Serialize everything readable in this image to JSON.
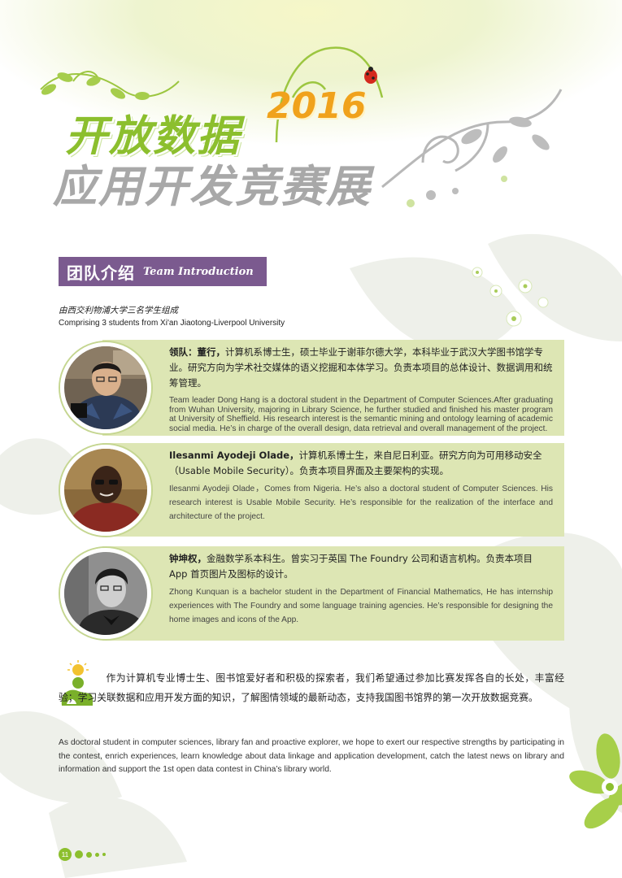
{
  "title": {
    "line1": "开放数据",
    "year": "2016",
    "line2": "应用开发竞赛展"
  },
  "section": {
    "title_cn": "团队介绍",
    "title_en": "Team Introduction"
  },
  "intro": {
    "cn": "由西交利物浦大学三名学生组成",
    "en": "Comprising 3 students from Xi'an Jiaotong-Liverpool University"
  },
  "members": [
    {
      "name": "领队：董行，",
      "cn": "计算机系博士生，硕士毕业于谢菲尔德大学，本科毕业于武汉大学图书馆学专业。研究方向为学术社交媒体的语义挖掘和本体学习。负责本项目的总体设计、数据调用和统筹管理。",
      "en": "Team leader Dong Hang is a doctoral student in the Department of Computer Sciences.After graduating from Wuhan University, majoring in Library Science, he further studied and finished his master program at University of Sheffield. His research interest is the semantic mining and ontology learning of academic social media. He’s in charge of the overall design, data retrieval and overall management of the project."
    },
    {
      "name": "Ilesanmi Ayodeji Olade，",
      "cn": "计算机系博士生，来自尼日利亚。研究方向为可用移动安全（Usable Mobile Security）。负责本项目界面及主要架构的实现。",
      "en": "Ilesanmi Ayodeji Olade，Comes from Nigeria. He’s also a doctoral student of Computer Sciences. His research interest is Usable Mobile Security. He’s responsible for the realization of the interface and architecture of the project."
    },
    {
      "name": "钟坤权，",
      "cn": "金融数学系本科生。曾实习于英国 The Foundry 公司和语言机构。负责本项目 App 首页图片及图标的设计。",
      "en": "Zhong Kunquan is a bachelor student in the Department of Financial Mathematics, He has internship experiences with The Foundry and some language training agencies. He’s responsible for designing the home images and icons of the App."
    }
  ],
  "closing": {
    "cn": "作为计算机专业博士生、图书馆爱好者和积极的探索者，我们希望通过参加比赛发挥各自的长处，丰富经验；学习关联数据和应用开发方面的知识，了解图情领域的最新动态，支持我国图书馆界的第一次开放数据竞赛。",
    "en": "As doctoral student in computer sciences, library fan and proactive explorer, we hope to exert our respective strengths by participating in the contest, enrich experiences, learn knowledge about data linkage and application development, catch the latest news on library and information and support the 1st open data contest in China’s library world."
  },
  "page_number": "11",
  "colors": {
    "accent_green": "#8cbf2e",
    "title_orange": "#f0a21c",
    "header_purple": "#7b5a8f",
    "card_bg": "#dde6b4"
  },
  "icons": [
    "vine-decoration-icon",
    "ladybug-icon",
    "flower-icon",
    "lightbulb-person-icon"
  ]
}
